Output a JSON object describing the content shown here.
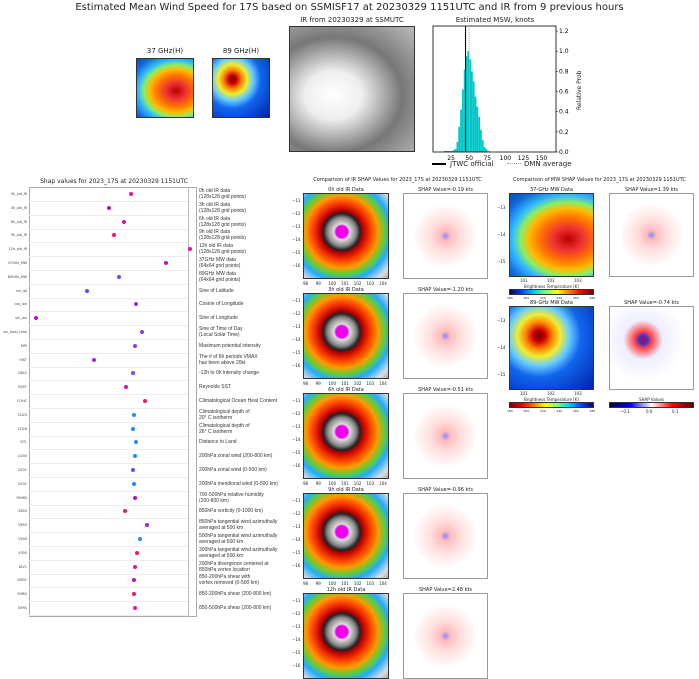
{
  "header": {
    "title": "Estimated Mean Wind Speed for 17S based on SSMISF17 at 20230329 1151UTC and IR from 9 previous hours"
  },
  "top": {
    "mw37_label": "37 GHz(H)",
    "mw89_label": "89 GHz(H)",
    "ir_label": "IR from 20230329 at  SSMUTC"
  },
  "chart_data": [
    {
      "type": "bar",
      "title": "Estimated MSW, knots",
      "ylabel": "Relative Prob",
      "xlim": [
        0,
        170
      ],
      "ylim": [
        0,
        1.25
      ],
      "xticks": [
        "25",
        "50",
        "75",
        "100",
        "125",
        "150"
      ],
      "xtick_values": [
        25,
        50,
        75,
        100,
        125,
        150
      ],
      "yticks": [
        "0.0",
        "0.2",
        "0.4",
        "0.6",
        "0.8",
        "1.0",
        "1.2"
      ],
      "ytick_values": [
        0,
        0.2,
        0.4,
        0.6,
        0.8,
        1.0,
        1.2
      ],
      "bin_width": 2.5,
      "bins": [
        15,
        17.5,
        20,
        22.5,
        25,
        27.5,
        30,
        32.5,
        35,
        37.5,
        40,
        42.5,
        45,
        47.5,
        50,
        52.5,
        55,
        57.5,
        60,
        62.5,
        65,
        67.5,
        70,
        72.5,
        75,
        77.5
      ],
      "values": [
        0.01,
        0.01,
        0.01,
        0.01,
        0.01,
        0.02,
        0.03,
        0.1,
        0.25,
        0.42,
        0.62,
        0.82,
        0.95,
        1.0,
        0.92,
        0.8,
        0.7,
        0.55,
        0.45,
        0.35,
        0.22,
        0.12,
        0.05,
        0.03,
        0.01,
        0.005
      ],
      "jtwc_official": 45,
      "dmn_average": 50,
      "legend": {
        "jtwc": "JTWC official",
        "dmn": "DMN average",
        "placement": "bottom"
      },
      "colors": {
        "bars": "#00c8c8",
        "jtwc": "#000000",
        "dmn": "#aaaaaa"
      }
    },
    {
      "type": "scatter",
      "title": "Shap values for 2023_17S at 20230329 1151UTC",
      "xlim": [
        -4.8,
        2.5
      ],
      "features": [
        {
          "short": "0h_old_IR",
          "desc": "0h old IR data\n(128x128 grid points)",
          "value": -0.19,
          "color": "#f0148c"
        },
        {
          "short": "3h_old_IR",
          "desc": "3h old IR data\n(128x128 grid points)",
          "value": -1.2,
          "color": "#b414c8"
        },
        {
          "short": "6h_old_IR",
          "desc": "6h old IR data\n(128x128 grid points)",
          "value": -0.51,
          "color": "#c814b4"
        },
        {
          "short": "9h_old_IR",
          "desc": "9h old IR data\n(128x128 grid points)",
          "value": -0.96,
          "color": "#f0147a"
        },
        {
          "short": "12h_old_IR",
          "desc": "12h old IR data\n(128x128 grid points)",
          "value": 2.48,
          "color": "#dc14a0"
        },
        {
          "short": "37GHz_MW",
          "desc": "37GHz MW data\n(64x64 grid points)",
          "value": 1.39,
          "color": "#c814a0"
        },
        {
          "short": "89GHz_MW",
          "desc": "89GHz MW data\n(64x64 grid points)",
          "value": -0.74,
          "color": "#6450f0"
        },
        {
          "short": "sin_lat",
          "desc": "Sine of Latitude",
          "value": -2.18,
          "color": "#5a50f0"
        },
        {
          "short": "cos_lon",
          "desc": "Cosine of Longitude",
          "value": 0.05,
          "color": "#a028d2"
        },
        {
          "short": "sin_lon",
          "desc": "Sine of Longitude",
          "value": -4.5,
          "color": "#b414c8"
        },
        {
          "short": "sin_local_time",
          "desc": "Sine of Time of Day\n(Local Solar Time)",
          "value": 0.32,
          "color": "#8c3ce6"
        },
        {
          "short": "MPI",
          "desc": "Maximum potential intensity",
          "value": 0.0,
          "color": "#7846f0"
        },
        {
          "short": "HIST",
          "desc": "The # of 6h periods VMAX\nhas been above 20kt",
          "value": -1.86,
          "color": "#a028dc"
        },
        {
          "short": "DELV",
          "desc": "-12h to 0h intensity change",
          "value": -0.09,
          "color": "#7846f0"
        },
        {
          "short": "RSST",
          "desc": "Reynolds SST",
          "value": -0.41,
          "color": "#c814b4"
        },
        {
          "short": "COHC",
          "desc": "Climatological Ocean Heat Content",
          "value": 0.45,
          "color": "#f0146e"
        },
        {
          "short": "CD20",
          "desc": "Climatological depth of\n20° C isotherm",
          "value": -0.05,
          "color": "#1e8cf0"
        },
        {
          "short": "CD26",
          "desc": "Climatological depth of\n26° C isotherm",
          "value": -0.09,
          "color": "#1e8cf0"
        },
        {
          "short": "DTL",
          "desc": "Distance to Land",
          "value": 0.05,
          "color": "#1e8cf0"
        },
        {
          "short": "U200",
          "desc": "200hPa zonal wind (200-800 km)",
          "value": 0.0,
          "color": "#1e8cf0"
        },
        {
          "short": "U20C",
          "desc": "200hPa zonal wind (0-500 km)",
          "value": -0.09,
          "color": "#5a50f0"
        },
        {
          "short": "V20C",
          "desc": "200hPa meridional wind (0-500 km)",
          "value": -0.05,
          "color": "#1e8cf0"
        },
        {
          "short": "RHMD",
          "desc": "700-500hPa relative humidity\n(200-800 km)",
          "value": 0.0,
          "color": "#b414c8"
        },
        {
          "short": "Z850",
          "desc": "850hPa vorticity (0-1000 km)",
          "value": -0.45,
          "color": "#f0146e"
        },
        {
          "short": "V850",
          "desc": "850hPa tangential wind azimuthally\naveraged at 500 km",
          "value": 0.55,
          "color": "#a028d2"
        },
        {
          "short": "V500",
          "desc": "500hPa tangential wind azimuthally\naveraged at 500 km",
          "value": 0.23,
          "color": "#1e8cf0"
        },
        {
          "short": "V300",
          "desc": "300hPa tangential wind azimuthally\naveraged at 500 km",
          "value": 0.09,
          "color": "#f0146e"
        },
        {
          "short": "DIVC",
          "desc": "200hPa divergence centered at\n850hPa vortex location",
          "value": 0.0,
          "color": "#f0148c"
        },
        {
          "short": "SHDC",
          "desc": "850-200hPa shear with\nvortex removed (0-500 km)",
          "value": -0.05,
          "color": "#b414c8"
        },
        {
          "short": "SHRD",
          "desc": "850-200hPa shear (200-800 km)",
          "value": -0.05,
          "color": "#f0146e"
        },
        {
          "short": "SHRS",
          "desc": "850-500hPa shear (200-800 km)",
          "value": 0.0,
          "color": "#f0148c"
        }
      ]
    }
  ],
  "ir_panel": {
    "title": "Comparison of IR SHAP Values for 2023_17S at 20230329 1151UTC",
    "yticks": [
      "−11",
      "−12",
      "−13",
      "−14",
      "−15",
      "−16"
    ],
    "xticks": [
      "98",
      "99",
      "100",
      "101",
      "102",
      "103",
      "104"
    ],
    "rows": [
      {
        "label": "0h old IR Data",
        "shap": "SHAP Value=-0.19 kts"
      },
      {
        "label": "3h old IR Data",
        "shap": "SHAP Value=-1.20 kts"
      },
      {
        "label": "6h old IR Data",
        "shap": "SHAP Value=-0.51 kts"
      },
      {
        "label": "9h old IR Data",
        "shap": "SHAP Value=-0.96 kts"
      },
      {
        "label": "12h old IR Data",
        "shap": "SHAP Value=2.48 kts"
      }
    ]
  },
  "mw_panel": {
    "title": "Comparison of MW SHAP Values for 2023_17S at 20230329 1151UTC",
    "yticks": [
      "−13",
      "−14",
      "−15"
    ],
    "xticks": [
      "101",
      "102",
      "103"
    ],
    "cbar_label": "Brightness Temperature [K]",
    "cbar_ticks": [
      "180",
      "200",
      "220",
      "240",
      "260",
      "280"
    ],
    "shap_cbar_label": "SHAP Values",
    "shap_cbar_ticks": [
      "−0.1",
      "0.0",
      "0.1"
    ],
    "rows": [
      {
        "label": "37-GHz MW Data",
        "shap": "SHAP Value=1.39 kts"
      },
      {
        "label": "89-GHz MW Data",
        "shap": "SHAP Value=-0.74 kts"
      }
    ]
  }
}
